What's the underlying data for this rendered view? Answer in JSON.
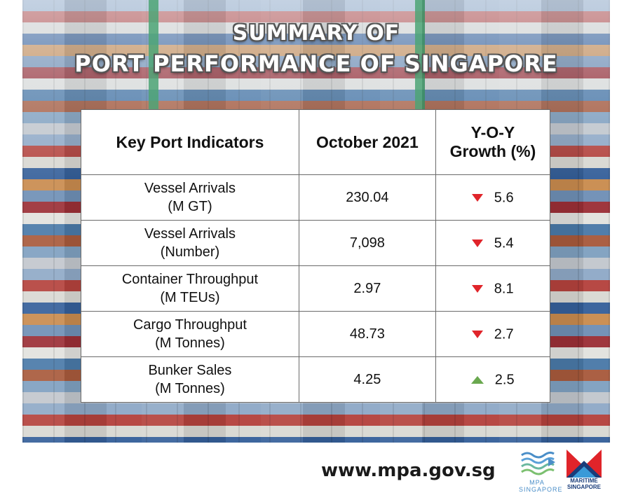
{
  "title": {
    "line1": "SUMMARY OF",
    "line2": "PORT PERFORMANCE OF SINGAPORE"
  },
  "table": {
    "headers": {
      "indicator": "Key Port Indicators",
      "period": "October 2021",
      "growth_line1": "Y-O-Y",
      "growth_line2": "Growth (%)"
    },
    "rows": [
      {
        "name": "Vessel Arrivals",
        "unit": "(M GT)",
        "value": "230.04",
        "growth": "5.6",
        "direction": "down"
      },
      {
        "name": "Vessel Arrivals",
        "unit": "(Number)",
        "value": "7,098",
        "growth": "5.4",
        "direction": "down"
      },
      {
        "name": "Container Throughput",
        "unit": "(M TEUs)",
        "value": "2.97",
        "growth": "8.1",
        "direction": "down"
      },
      {
        "name": "Cargo Throughput",
        "unit": "(M Tonnes)",
        "value": "48.73",
        "growth": "2.7",
        "direction": "down"
      },
      {
        "name": "Bunker Sales",
        "unit": "(M Tonnes)",
        "value": "4.25",
        "growth": "2.5",
        "direction": "up"
      }
    ]
  },
  "footer": {
    "url": "www.mpa.gov.sg",
    "mpa_logo_text": "MPA SINGAPORE",
    "maritime_logo_text": "MARITIME SINGAPORE"
  },
  "colors": {
    "decrease": "#e0242a",
    "increase": "#6aa84f",
    "mpa_blue": "#4a8ec8",
    "maritime_red": "#e0242a",
    "maritime_navy": "#1a3d7a"
  },
  "icons": {
    "decrease": "triangle-down-icon",
    "increase": "triangle-up-icon"
  }
}
